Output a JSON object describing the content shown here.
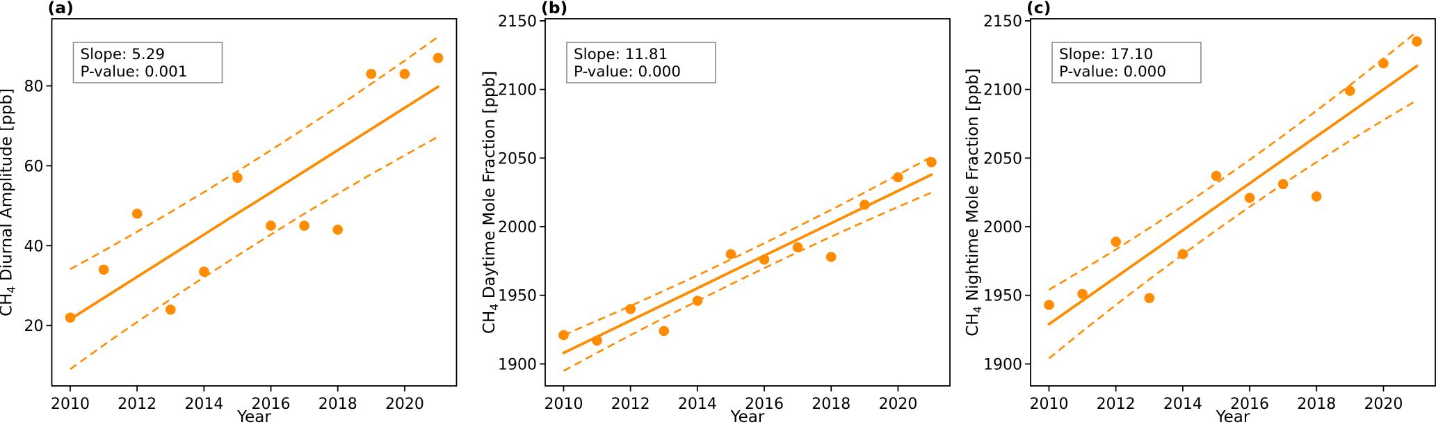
{
  "figure": {
    "background_color": "#ffffff",
    "accent_color": "#FF8C00",
    "text_color": "#000000",
    "annotation_border_color": "#8a8a8a",
    "annotation_fill_color": "#ffffff"
  },
  "chart_data": [
    {
      "type": "scatter",
      "panel_label": "(a)",
      "xlabel": "Year",
      "ylabel": {
        "main": "CH",
        "sub": "4",
        "rest": " Diurnal Amplitude [ppb]"
      },
      "annotation": {
        "slope_label": "Slope: 5.29",
        "pvalue_label": "P-value: 0.001"
      },
      "slope": 5.29,
      "p_value": 0.001,
      "x": [
        2010,
        2011,
        2012,
        2013,
        2014,
        2015,
        2016,
        2017,
        2018,
        2019,
        2020,
        2021
      ],
      "scatter_y": [
        22,
        34,
        48,
        24,
        33.5,
        57,
        45,
        45,
        44,
        83,
        83,
        87
      ],
      "trend_y": [
        21.6,
        26.9,
        32.2,
        37.5,
        42.8,
        48.1,
        53.3,
        58.6,
        63.9,
        69.2,
        74.5,
        79.8
      ],
      "ci_upper_y": [
        34.1,
        38.7,
        43.5,
        48.4,
        53.4,
        58.6,
        63.9,
        69.3,
        74.8,
        80.5,
        86.3,
        92.3
      ],
      "ci_lower_y": [
        9.1,
        15.1,
        20.9,
        26.6,
        32.1,
        37.5,
        42.8,
        48.0,
        53.0,
        57.9,
        62.6,
        67.3
      ],
      "xlim": [
        2009.45,
        2021.55
      ],
      "ylim": [
        4.9,
        96.8
      ],
      "xticks": [
        2010,
        2012,
        2014,
        2016,
        2018,
        2020
      ],
      "yticks": [
        20,
        40,
        60,
        80
      ],
      "grid": false,
      "legend": null
    },
    {
      "type": "scatter",
      "panel_label": "(b)",
      "xlabel": "Year",
      "ylabel": {
        "main": "CH",
        "sub": "4",
        "rest": " Daytime Mole Fraction [ppb]"
      },
      "annotation": {
        "slope_label": "Slope: 11.81",
        "pvalue_label": "P-value: 0.000"
      },
      "slope": 11.81,
      "p_value": 0.0,
      "x": [
        2010,
        2011,
        2012,
        2013,
        2014,
        2015,
        2016,
        2017,
        2018,
        2019,
        2020,
        2021
      ],
      "scatter_y": [
        1921,
        1917,
        1940,
        1924,
        1946,
        1980,
        1976,
        1985,
        1978,
        2016,
        2036,
        2047
      ],
      "trend_y": [
        1908.0,
        1919.8,
        1931.6,
        1943.4,
        1955.2,
        1967.1,
        1978.9,
        1990.7,
        2002.5,
        2014.3,
        2026.1,
        2037.9
      ],
      "ci_upper_y": [
        1921.0,
        1931.5,
        1942.2,
        1953.3,
        1964.5,
        1976.1,
        1987.9,
        2000.0,
        2012.3,
        2024.9,
        2037.8,
        2050.9
      ],
      "ci_lower_y": [
        1895.0,
        1908.1,
        1921.0,
        1933.6,
        1945.9,
        1958.0,
        1969.8,
        1981.4,
        1992.7,
        2003.7,
        2014.4,
        2024.9
      ],
      "xlim": [
        2009.45,
        2021.55
      ],
      "ylim": [
        1884.0,
        2151.5
      ],
      "xticks": [
        2010,
        2012,
        2014,
        2016,
        2018,
        2020
      ],
      "yticks": [
        1900,
        1950,
        2000,
        2050,
        2100,
        2150
      ],
      "grid": false,
      "legend": null
    },
    {
      "type": "scatter",
      "panel_label": "(c)",
      "xlabel": "Year",
      "ylabel": {
        "main": "CH",
        "sub": "4",
        "rest": " Nightime Mole Fraction [ppb]"
      },
      "annotation": {
        "slope_label": "Slope: 17.10",
        "pvalue_label": "P-value: 0.000"
      },
      "slope": 17.1,
      "p_value": 0.0,
      "x": [
        2010,
        2011,
        2012,
        2013,
        2014,
        2015,
        2016,
        2017,
        2018,
        2019,
        2020,
        2021
      ],
      "scatter_y": [
        1943,
        1951,
        1989,
        1948,
        1980,
        2037,
        2021,
        2031,
        2022,
        2099,
        2119,
        2135
      ],
      "trend_y": [
        1929.0,
        1946.1,
        1963.2,
        1980.3,
        1997.4,
        2014.5,
        2031.6,
        2048.7,
        2065.8,
        2082.9,
        2100.0,
        2117.1
      ],
      "ci_upper_y": [
        1954.0,
        1968.5,
        1983.4,
        1999.0,
        2015.0,
        2031.6,
        2048.7,
        2066.3,
        2084.5,
        2103.1,
        2122.4,
        2142.1
      ],
      "ci_lower_y": [
        1904.0,
        1923.8,
        1943.0,
        1961.6,
        1979.8,
        1997.4,
        2014.5,
        2031.1,
        2047.1,
        2062.7,
        2077.7,
        2092.1
      ],
      "xlim": [
        2009.45,
        2021.55
      ],
      "ylim": [
        1884.0,
        2151.5
      ],
      "xticks": [
        2010,
        2012,
        2014,
        2016,
        2018,
        2020
      ],
      "yticks": [
        1900,
        1950,
        2000,
        2050,
        2100,
        2150
      ],
      "grid": false,
      "legend": null
    }
  ]
}
